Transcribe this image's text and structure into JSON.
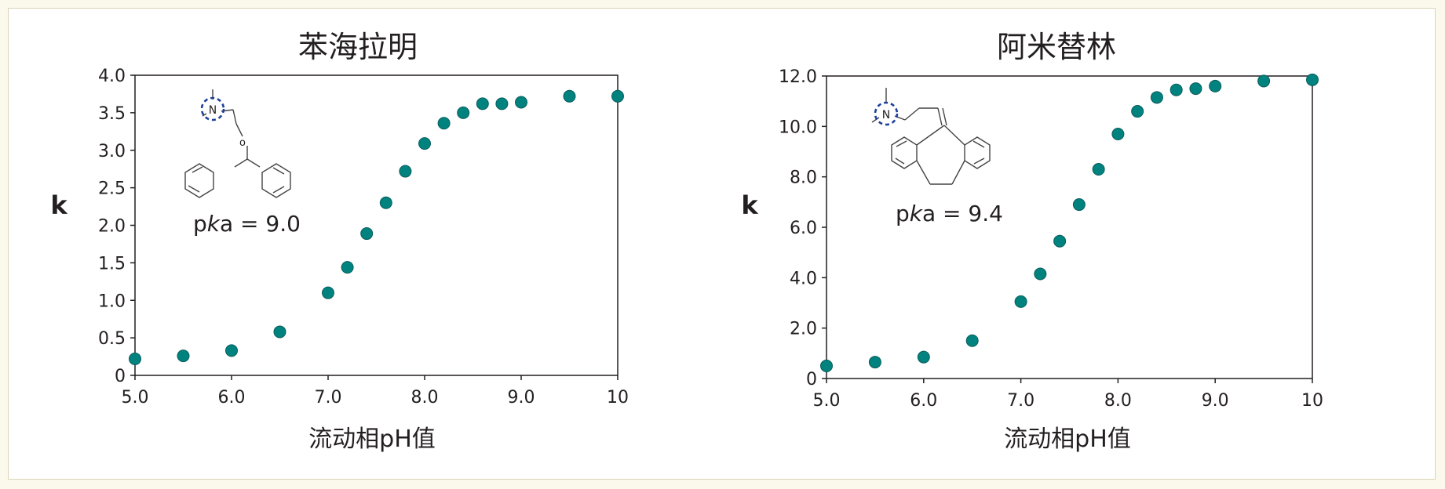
{
  "colors": {
    "point": "#00827f",
    "point_edge": "#0a5e5c",
    "axis": "#231f20",
    "ring": "#1d3f9c"
  },
  "chart_data": [
    {
      "type": "scatter",
      "title": "苯海拉明",
      "xlabel": "流动相pH值",
      "ylabel": "k",
      "xlim": [
        5.0,
        10
      ],
      "ylim": [
        0,
        4.0
      ],
      "x_ticks": [
        "5.0",
        "6.0",
        "7.0",
        "8.0",
        "9.0",
        "10"
      ],
      "y_ticks": [
        "0",
        "0.5",
        "1.0",
        "1.5",
        "2.0",
        "2.5",
        "3.0",
        "3.5",
        "4.0"
      ],
      "annotation": {
        "prefix": "p",
        "italic": "k",
        "suffix": "a = 9.0",
        "atom": "N"
      },
      "x": [
        5.0,
        5.5,
        6.0,
        6.5,
        7.0,
        7.2,
        7.4,
        7.6,
        7.8,
        8.0,
        8.2,
        8.4,
        8.6,
        8.8,
        9.0,
        9.5,
        10.0
      ],
      "y": [
        0.22,
        0.26,
        0.33,
        0.58,
        1.1,
        1.44,
        1.89,
        2.3,
        2.72,
        3.09,
        3.36,
        3.5,
        3.62,
        3.62,
        3.64,
        3.72,
        3.72
      ]
    },
    {
      "type": "scatter",
      "title": "阿米替林",
      "xlabel": "流动相pH值",
      "ylabel": "k",
      "xlim": [
        5.0,
        10
      ],
      "ylim": [
        0,
        12.0
      ],
      "x_ticks": [
        "5.0",
        "6.0",
        "7.0",
        "8.0",
        "9.0",
        "10"
      ],
      "y_ticks": [
        "0",
        "2.0",
        "4.0",
        "6.0",
        "8.0",
        "10.0",
        "12.0"
      ],
      "annotation": {
        "prefix": "p",
        "italic": "k",
        "suffix": "a = 9.4",
        "atom": "N"
      },
      "x": [
        5.0,
        5.5,
        6.0,
        6.5,
        7.0,
        7.2,
        7.4,
        7.6,
        7.8,
        8.0,
        8.2,
        8.4,
        8.6,
        8.8,
        9.0,
        9.5,
        10.0
      ],
      "y": [
        0.5,
        0.65,
        0.85,
        1.5,
        3.05,
        4.15,
        5.45,
        6.9,
        8.3,
        9.7,
        10.6,
        11.15,
        11.45,
        11.5,
        11.6,
        11.8,
        11.85
      ]
    }
  ]
}
